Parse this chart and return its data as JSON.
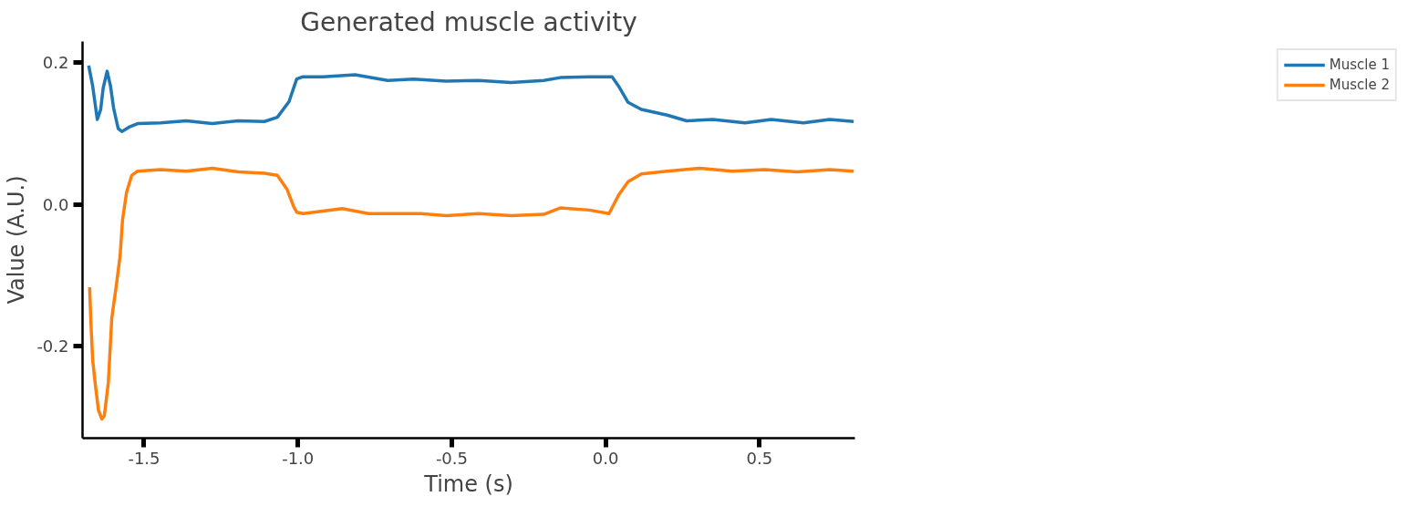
{
  "chart_data": {
    "type": "line",
    "title": "Generated muscle activity",
    "xlabel": "Time (s)",
    "ylabel": "Value (A.U.)",
    "xlim": [
      -1.7,
      0.81
    ],
    "ylim": [
      -0.33,
      0.23
    ],
    "xticks": [
      -1.5,
      {
        "value": -1.0,
        "label": "-1.0"
      },
      -0.5,
      {
        "value": 0.0,
        "label": "0.0"
      },
      0.5
    ],
    "yticks": [
      {
        "value": -0.2,
        "label": "-0.2"
      },
      {
        "value": 0.0,
        "label": "0.0"
      },
      {
        "value": 0.2,
        "label": "0.2"
      }
    ],
    "grid": false,
    "legend": "right",
    "line_style": "solid",
    "series": [
      {
        "name": "Muscle 1",
        "color": "#1f77b4",
        "x": [
          -1.68,
          -1.667,
          -1.652,
          -1.641,
          -1.633,
          -1.62,
          -1.609,
          -1.599,
          -1.584,
          -1.572,
          -1.549,
          -1.521,
          -1.447,
          -1.363,
          -1.278,
          -1.194,
          -1.109,
          -1.067,
          -1.029,
          -1.004,
          -0.986,
          -0.919,
          -0.814,
          -0.708,
          -0.624,
          -0.518,
          -0.413,
          -0.307,
          -0.201,
          -0.148,
          -0.053,
          0.021,
          0.042,
          0.073,
          0.116,
          0.2,
          0.263,
          0.348,
          0.453,
          0.538,
          0.643,
          0.728,
          0.806
        ],
        "values": [
          0.196,
          0.167,
          0.12,
          0.134,
          0.164,
          0.188,
          0.167,
          0.136,
          0.107,
          0.103,
          0.109,
          0.114,
          0.115,
          0.118,
          0.114,
          0.118,
          0.117,
          0.123,
          0.145,
          0.177,
          0.18,
          0.18,
          0.183,
          0.175,
          0.177,
          0.174,
          0.175,
          0.172,
          0.175,
          0.179,
          0.18,
          0.18,
          0.167,
          0.144,
          0.134,
          0.126,
          0.118,
          0.12,
          0.115,
          0.12,
          0.115,
          0.12,
          0.117
        ]
      },
      {
        "name": "Muscle 2",
        "color": "#ff7f0e",
        "x": [
          -1.677,
          -1.673,
          -1.667,
          -1.658,
          -1.648,
          -1.637,
          -1.629,
          -1.616,
          -1.605,
          -1.591,
          -1.578,
          -1.57,
          -1.557,
          -1.54,
          -1.521,
          -1.447,
          -1.363,
          -1.278,
          -1.194,
          -1.109,
          -1.067,
          -1.035,
          -1.014,
          -1.004,
          -0.983,
          -0.856,
          -0.771,
          -0.602,
          -0.518,
          -0.413,
          -0.307,
          -0.201,
          -0.148,
          -0.053,
          0.011,
          0.042,
          0.073,
          0.116,
          0.2,
          0.306,
          0.411,
          0.517,
          0.622,
          0.728,
          0.806
        ],
        "values": [
          -0.117,
          -0.164,
          -0.22,
          -0.256,
          -0.291,
          -0.303,
          -0.298,
          -0.251,
          -0.161,
          -0.117,
          -0.073,
          -0.022,
          0.017,
          0.041,
          0.047,
          0.049,
          0.047,
          0.051,
          0.046,
          0.044,
          0.041,
          0.021,
          -0.003,
          -0.011,
          -0.013,
          -0.006,
          -0.013,
          -0.013,
          -0.016,
          -0.013,
          -0.016,
          -0.014,
          -0.005,
          -0.008,
          -0.013,
          0.013,
          0.032,
          0.043,
          0.047,
          0.051,
          0.047,
          0.049,
          0.046,
          0.049,
          0.047
        ]
      }
    ]
  }
}
